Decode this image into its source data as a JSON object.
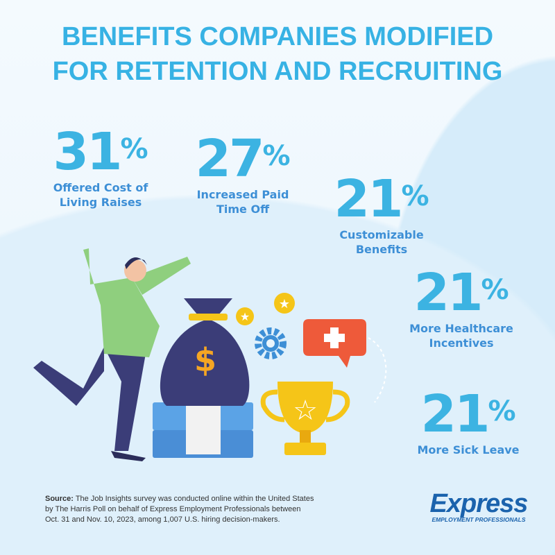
{
  "title": {
    "line1": "BENEFITS COMPANIES MODIFIED",
    "line2": "FOR RETENTION AND RECRUITING"
  },
  "stats": [
    {
      "value": "31",
      "unit": "%",
      "label1": "Offered Cost of",
      "label2": "Living Raises"
    },
    {
      "value": "27",
      "unit": "%",
      "label1": "Increased Paid",
      "label2": "Time Off"
    },
    {
      "value": "21",
      "unit": "%",
      "label1": "Customizable",
      "label2": "Benefits"
    },
    {
      "value": "21",
      "unit": "%",
      "label1": "More Healthcare",
      "label2": "Incentives"
    },
    {
      "value": "21",
      "unit": "%",
      "label1": "More Sick Leave",
      "label2": ""
    }
  ],
  "source": {
    "prefix": "Source:",
    "line1": " The Job Insights survey was conducted online within the United States",
    "line2": "by The Harris Poll on behalf of Express Employment Professionals between",
    "line3": "Oct. 31 and Nov. 10, 2023, among 1,007 U.S. hiring decision-makers."
  },
  "logo": {
    "wordmark": "Express",
    "tagline": "EMPLOYMENT PROFESSIONALS"
  },
  "colors": {
    "title": "#37b2e4",
    "number": "#3cb3e2",
    "label": "#3d8fd6",
    "logo": "#1b63ad"
  },
  "illustration": {
    "icons": [
      "money-bag-icon",
      "dollar-icon",
      "gear-icon",
      "star-coin-icon",
      "medical-cross-icon",
      "trophy-icon",
      "cash-stack-icon",
      "celebrating-man"
    ]
  }
}
